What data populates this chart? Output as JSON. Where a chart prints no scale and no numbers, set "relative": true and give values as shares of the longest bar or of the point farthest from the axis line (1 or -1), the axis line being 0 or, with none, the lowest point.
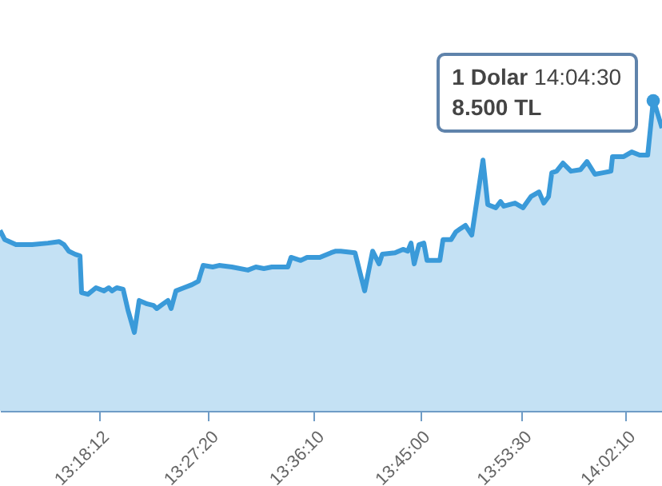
{
  "chart_data": {
    "type": "area",
    "relative": true,
    "x": [
      13.1653,
      13.172,
      13.1876,
      13.2098,
      13.2321,
      13.2477,
      13.2544,
      13.2611,
      13.27,
      13.2767,
      13.2789,
      13.2878,
      13.2989,
      13.3101,
      13.3167,
      13.3212,
      13.3279,
      13.3368,
      13.3435,
      13.3524,
      13.3591,
      13.3702,
      13.3791,
      13.3836,
      13.3925,
      13.3992,
      13.4036,
      13.4103,
      13.4214,
      13.4326,
      13.4415,
      13.4482,
      13.4615,
      13.4704,
      13.4882,
      13.5105,
      13.5216,
      13.5328,
      13.5439,
      13.5662,
      13.5706,
      13.584,
      13.5929,
      13.6107,
      13.6263,
      13.633,
      13.6397,
      13.6597,
      13.6731,
      13.6842,
      13.6932,
      13.6976,
      13.7154,
      13.7265,
      13.7332,
      13.7377,
      13.7421,
      13.7488,
      13.7555,
      13.76,
      13.7778,
      13.7822,
      13.7934,
      13.8001,
      13.8067,
      13.8134,
      13.8223,
      13.8379,
      13.8446,
      13.8557,
      13.8624,
      13.8669,
      13.8825,
      13.8936,
      13.9047,
      13.9159,
      13.9226,
      13.9292,
      13.9337,
      13.9404,
      13.9493,
      13.9604,
      13.9738,
      13.9827,
      13.9938,
      14.005,
      14.0161,
      14.0183,
      14.0339,
      14.045,
      14.0561,
      14.0673,
      14.075,
      14.0784,
      14.0872
    ],
    "series": [
      {
        "color": "#3a9ad9",
        "values": [
          0.582,
          0.552,
          0.536,
          0.536,
          0.541,
          0.546,
          0.536,
          0.515,
          0.505,
          0.5,
          0.381,
          0.376,
          0.397,
          0.387,
          0.397,
          0.387,
          0.397,
          0.392,
          0.325,
          0.253,
          0.356,
          0.345,
          0.34,
          0.33,
          0.345,
          0.356,
          0.33,
          0.387,
          0.397,
          0.407,
          0.418,
          0.469,
          0.464,
          0.469,
          0.464,
          0.454,
          0.464,
          0.459,
          0.464,
          0.464,
          0.495,
          0.485,
          0.495,
          0.495,
          0.51,
          0.515,
          0.515,
          0.51,
          0.387,
          0.515,
          0.474,
          0.505,
          0.51,
          0.521,
          0.515,
          0.541,
          0.474,
          0.536,
          0.541,
          0.485,
          0.485,
          0.552,
          0.552,
          0.577,
          0.588,
          0.598,
          0.567,
          0.809,
          0.665,
          0.655,
          0.675,
          0.66,
          0.67,
          0.655,
          0.691,
          0.706,
          0.67,
          0.691,
          0.768,
          0.773,
          0.799,
          0.773,
          0.778,
          0.804,
          0.763,
          0.768,
          0.773,
          0.82,
          0.82,
          0.835,
          0.825,
          0.825,
          1,
          0.979,
          0.912
        ]
      }
    ],
    "xlim": [
      13.1653,
      14.0872
    ],
    "xticks": [
      {
        "value": 13.3033,
        "label": "13:18:12"
      },
      {
        "value": 13.4556,
        "label": "13:27:20"
      },
      {
        "value": 13.6028,
        "label": "13:36:10"
      },
      {
        "value": 13.75,
        "label": "13:45:00"
      },
      {
        "value": 13.8917,
        "label": "13:53:30"
      },
      {
        "value": 14.0361,
        "label": "14:02:10"
      }
    ],
    "annotations": [
      {
        "text": "1 Dolar 14:04:30\n8.500 TL",
        "x": 14.075,
        "y": 1
      }
    ]
  }
}
